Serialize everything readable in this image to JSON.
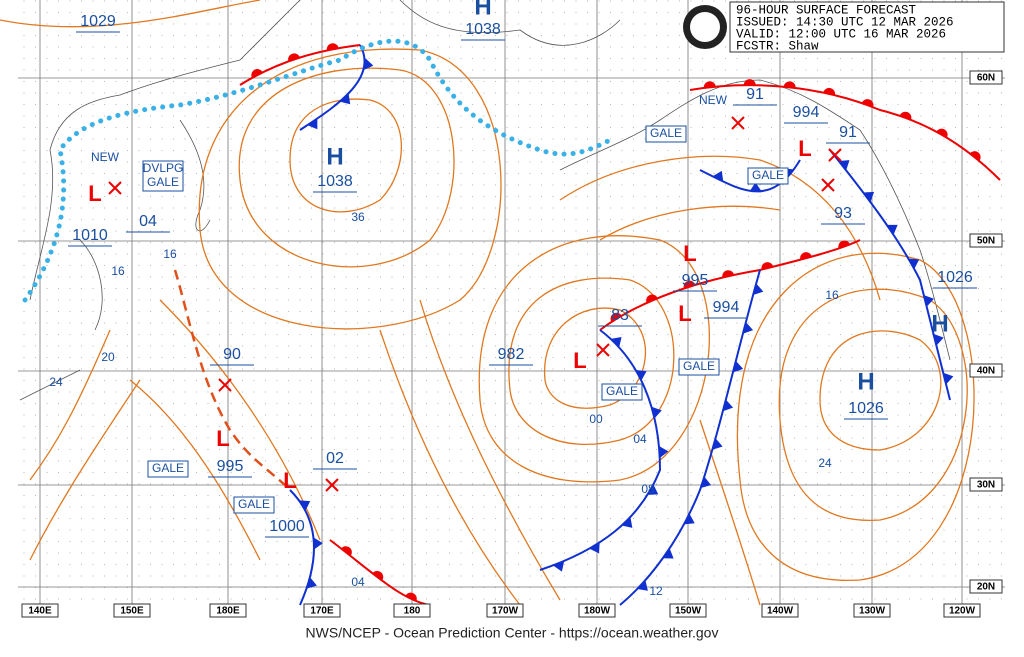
{
  "header": {
    "title": "96-HOUR SURFACE FORECAST",
    "issued": "ISSUED: 14:30 UTC 12 MAR 2026",
    "valid": "VALID:  12:00 UTC 16 MAR 2026",
    "forecaster": "FCSTR:  Shaw"
  },
  "longitude_labels": [
    "140E",
    "150E",
    "180E",
    "170E",
    "180",
    "170W",
    "180W",
    "150W",
    "140W",
    "130W",
    "120W"
  ],
  "latitude_labels": [
    "60N",
    "50N",
    "40N",
    "30N",
    "20N"
  ],
  "labels": [
    "1029",
    "H",
    "1038",
    "H",
    "1038",
    "36",
    "NEW",
    "1010",
    "04",
    "16",
    "16",
    "20",
    "24",
    "90",
    "995",
    "02",
    "1000",
    "04",
    "982",
    "83",
    "00",
    "04",
    "08",
    "12",
    "995",
    "994",
    "NEW",
    "91",
    "994",
    "91",
    "93",
    "16",
    "1026",
    "H",
    "H",
    "1026",
    "24"
  ],
  "gale_boxes": [
    "DVLPG\nGALE",
    "GALE",
    "GALE",
    "GALE",
    "GALE",
    "GALE",
    "GALE"
  ],
  "footer": "NWS/NCEP - Ocean Prediction Center - https://ocean.weather.gov"
}
